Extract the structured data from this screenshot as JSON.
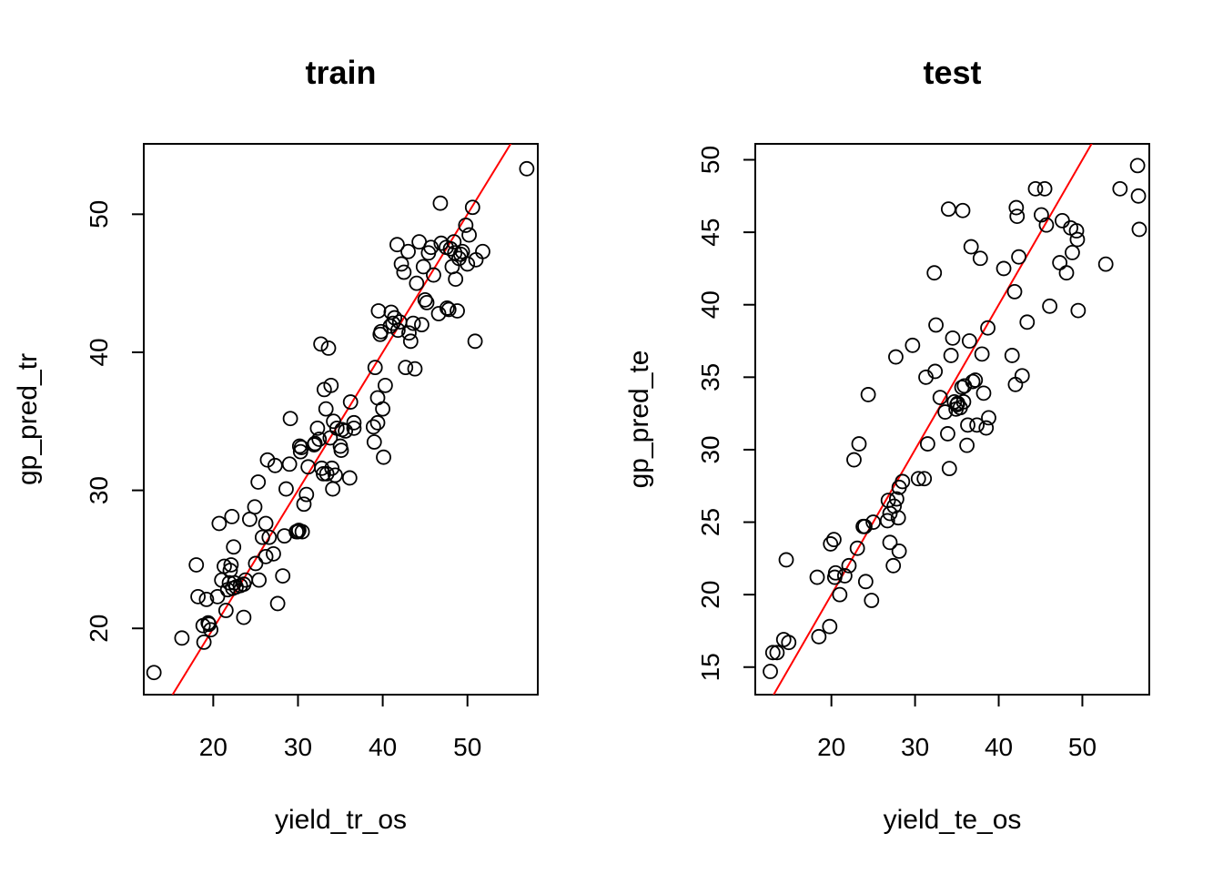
{
  "chart_data": [
    {
      "type": "scatter",
      "title": "train",
      "xlabel": "yield_tr_os",
      "ylabel": "gp_pred_tr",
      "xlim": [
        11.8,
        58.3
      ],
      "ylim": [
        15.2,
        55.1
      ],
      "xticks": [
        20,
        30,
        40,
        50
      ],
      "yticks": [
        20,
        30,
        40,
        50
      ],
      "grid": false,
      "line": {
        "color": "#ff0000",
        "slope": 1,
        "intercept": 0
      },
      "point_color": "#000000",
      "x": [
        13.0,
        16.3,
        18.0,
        18.2,
        18.8,
        18.9,
        19.2,
        19.4,
        19.5,
        19.7,
        20.5,
        20.7,
        21.0,
        21.3,
        21.5,
        21.7,
        21.9,
        22.0,
        22.1,
        22.2,
        22.3,
        22.4,
        22.5,
        22.7,
        23.2,
        23.6,
        23.6,
        23.8,
        24.3,
        24.9,
        25.0,
        25.3,
        25.4,
        25.8,
        26.2,
        26.2,
        26.4,
        26.6,
        27.1,
        27.3,
        27.6,
        28.2,
        28.4,
        28.6,
        29.0,
        29.1,
        29.8,
        30.0,
        30.1,
        30.2,
        30.3,
        30.4,
        30.5,
        30.7,
        31.0,
        31.2,
        31.9,
        32.0,
        32.3,
        32.5,
        32.7,
        32.8,
        33.0,
        33.1,
        33.3,
        33.4,
        33.6,
        33.8,
        33.9,
        34.0,
        34.1,
        34.2,
        34.4,
        34.6,
        35.0,
        35.1,
        35.2,
        35.6,
        36.1,
        36.2,
        36.6,
        36.6,
        38.9,
        39.0,
        39.1,
        39.4,
        39.4,
        39.5,
        39.7,
        39.8,
        40.0,
        40.1,
        40.3,
        40.9,
        41.0,
        41.2,
        41.4,
        41.7,
        41.8,
        42.0,
        42.2,
        42.5,
        42.7,
        43.0,
        43.1,
        43.3,
        43.6,
        43.8,
        44.0,
        44.3,
        44.6,
        44.8,
        45.0,
        45.2,
        45.4,
        45.7,
        46.0,
        46.6,
        46.8,
        46.9,
        47.5,
        47.6,
        47.8,
        48.0,
        48.2,
        48.4,
        48.5,
        48.6,
        48.8,
        49.0,
        49.2,
        49.4,
        49.8,
        50.0,
        50.2,
        50.6,
        50.9,
        51.0,
        51.8,
        57.0
      ],
      "y": [
        16.8,
        19.3,
        24.6,
        22.3,
        20.2,
        19.0,
        22.1,
        20.4,
        20.3,
        19.9,
        22.3,
        27.6,
        23.5,
        24.5,
        21.3,
        22.8,
        23.3,
        24.2,
        24.6,
        28.1,
        22.9,
        25.9,
        23.3,
        23.0,
        23.1,
        20.8,
        23.2,
        23.5,
        27.9,
        28.8,
        24.7,
        30.6,
        23.5,
        26.6,
        27.6,
        25.2,
        32.2,
        26.6,
        25.4,
        31.8,
        21.8,
        23.8,
        26.7,
        30.1,
        31.9,
        35.2,
        27.0,
        27.0,
        27.1,
        33.2,
        32.8,
        33.1,
        27.0,
        29.0,
        29.7,
        31.7,
        33.3,
        33.4,
        34.5,
        33.7,
        40.6,
        31.6,
        31.2,
        37.3,
        35.9,
        31.2,
        40.3,
        33.8,
        37.6,
        31.6,
        30.1,
        35.0,
        31.1,
        34.5,
        33.2,
        32.9,
        34.4,
        34.3,
        30.9,
        36.4,
        34.5,
        34.9,
        34.6,
        33.5,
        38.9,
        34.9,
        36.7,
        43.0,
        41.3,
        41.5,
        35.9,
        32.4,
        37.6,
        41.9,
        42.9,
        42.1,
        42.5,
        47.8,
        41.6,
        42.2,
        46.4,
        45.8,
        38.9,
        47.3,
        41.4,
        40.8,
        42.1,
        38.8,
        45.0,
        48.0,
        42.0,
        46.2,
        43.8,
        43.6,
        47.2,
        47.6,
        45.6,
        42.8,
        50.8,
        47.9,
        47.6,
        43.2,
        43.1,
        47.5,
        46.2,
        48.0,
        47.2,
        45.3,
        43.0,
        46.8,
        47.1,
        47.3,
        49.2,
        46.4,
        48.5,
        50.5,
        40.8,
        46.7,
        47.3,
        53.3
      ]
    },
    {
      "type": "scatter",
      "title": "test",
      "xlabel": "yield_te_os",
      "ylabel": "gp_pred_te",
      "xlim": [
        10.9,
        58.0
      ],
      "ylim": [
        13.1,
        51.1
      ],
      "xticks": [
        20,
        30,
        40,
        50
      ],
      "yticks": [
        15,
        20,
        25,
        30,
        35,
        40,
        45,
        50
      ],
      "grid": false,
      "line": {
        "color": "#ff0000",
        "slope": 1,
        "intercept": 0
      },
      "point_color": "#000000",
      "x": [
        12.7,
        13.0,
        13.5,
        14.3,
        14.6,
        14.9,
        18.3,
        18.5,
        19.8,
        19.9,
        20.3,
        20.4,
        20.5,
        21.0,
        21.6,
        22.1,
        22.7,
        23.1,
        23.3,
        23.8,
        24.0,
        24.1,
        24.4,
        24.8,
        25.0,
        26.7,
        26.8,
        27.0,
        27.0,
        27.4,
        27.5,
        27.7,
        27.8,
        28.0,
        28.1,
        28.1,
        28.5,
        29.7,
        30.4,
        31.1,
        31.3,
        31.5,
        32.3,
        32.4,
        32.5,
        33.0,
        33.6,
        33.9,
        34.0,
        34.1,
        34.3,
        34.5,
        34.7,
        34.9,
        35.0,
        35.1,
        35.4,
        35.6,
        35.7,
        35.8,
        35.9,
        36.2,
        36.3,
        36.5,
        36.7,
        36.9,
        37.2,
        37.4,
        37.8,
        38.0,
        38.2,
        38.5,
        38.7,
        38.8,
        40.6,
        41.6,
        41.9,
        42.0,
        42.1,
        42.2,
        42.4,
        42.8,
        43.4,
        44.4,
        45.1,
        45.5,
        45.7,
        46.1,
        47.3,
        47.6,
        48.1,
        48.6,
        48.8,
        49.3,
        49.4,
        49.5,
        52.8,
        54.5,
        56.6,
        56.7,
        56.8
      ],
      "y": [
        14.7,
        16.0,
        16.0,
        16.9,
        22.4,
        16.7,
        21.2,
        17.1,
        17.8,
        23.5,
        23.8,
        21.2,
        21.5,
        20.0,
        21.3,
        22.0,
        29.3,
        23.2,
        30.4,
        24.7,
        24.7,
        20.9,
        33.8,
        19.6,
        25.0,
        25.1,
        26.5,
        25.6,
        23.6,
        22.0,
        26.1,
        36.4,
        26.6,
        25.3,
        23.0,
        27.4,
        27.8,
        37.2,
        28.0,
        28.0,
        35.0,
        30.4,
        42.2,
        35.4,
        38.6,
        33.6,
        32.6,
        31.1,
        46.6,
        28.7,
        36.5,
        37.7,
        33.3,
        32.8,
        33.1,
        33.2,
        32.9,
        34.3,
        46.5,
        33.3,
        34.4,
        30.3,
        31.7,
        37.5,
        44.0,
        34.7,
        34.8,
        31.7,
        43.2,
        36.6,
        33.9,
        31.5,
        38.4,
        32.2,
        42.5,
        36.5,
        40.9,
        34.5,
        46.7,
        46.1,
        43.3,
        35.1,
        38.8,
        48.0,
        46.2,
        48.0,
        45.5,
        39.9,
        42.9,
        45.8,
        42.2,
        45.3,
        43.6,
        45.1,
        44.5,
        39.6,
        42.8,
        48.0,
        49.6,
        47.5,
        45.2
      ]
    }
  ]
}
